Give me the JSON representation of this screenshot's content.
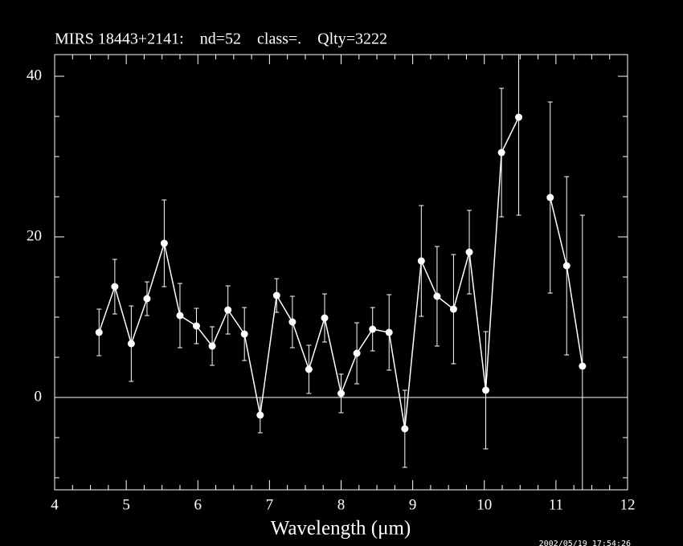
{
  "chart_data": {
    "type": "errorbar_line",
    "title": "MIRS 18443+2141:    nd=52    class=.    Qlty=3222",
    "xlabel": "Wavelength (μm)",
    "timestamp": "2002/05/19 17:54:26",
    "x": [
      4.62,
      4.84,
      5.07,
      5.29,
      5.53,
      5.75,
      5.98,
      6.2,
      6.42,
      6.65,
      6.87,
      7.1,
      7.32,
      7.55,
      7.77,
      8.0,
      8.22,
      8.44,
      8.67,
      8.89,
      9.12,
      9.34,
      9.57,
      9.79,
      10.02,
      10.24,
      10.48,
      10.7,
      10.92,
      11.15,
      11.37
    ],
    "values": [
      8.1,
      13.8,
      6.7,
      12.3,
      19.2,
      10.2,
      8.9,
      6.4,
      10.9,
      7.9,
      -2.2,
      12.7,
      9.4,
      3.5,
      9.9,
      0.5,
      5.5,
      8.5,
      8.1,
      -3.9,
      17.0,
      12.6,
      11.0,
      18.1,
      0.9,
      30.5,
      34.9,
      null,
      24.9,
      16.4,
      3.9
    ],
    "errors": [
      2.9,
      3.4,
      4.7,
      2.1,
      5.4,
      4.0,
      2.2,
      2.4,
      3.0,
      3.3,
      2.2,
      2.1,
      3.2,
      3.0,
      3.0,
      2.4,
      3.8,
      2.7,
      4.7,
      4.8,
      6.9,
      6.2,
      6.8,
      5.2,
      7.3,
      8.0,
      12.2,
      null,
      11.9,
      11.1,
      18.8
    ],
    "color": "#ffffff",
    "xlim": [
      4,
      12
    ],
    "ylim": [
      -11.5,
      42.7
    ],
    "xticks": [
      4,
      5,
      6,
      7,
      8,
      9,
      10,
      11,
      12
    ],
    "yticks": [
      0,
      20,
      40
    ],
    "xminorticks": [
      4.25,
      4.5,
      4.75,
      5.25,
      5.5,
      5.75,
      6.25,
      6.5,
      6.75,
      7.25,
      7.5,
      7.75,
      8.25,
      8.5,
      8.75,
      9.25,
      9.5,
      9.75,
      10.25,
      10.5,
      10.75,
      11.25,
      11.5,
      11.75
    ],
    "yminorticks": [
      -10,
      -5,
      5,
      10,
      15,
      25,
      30,
      35
    ]
  }
}
